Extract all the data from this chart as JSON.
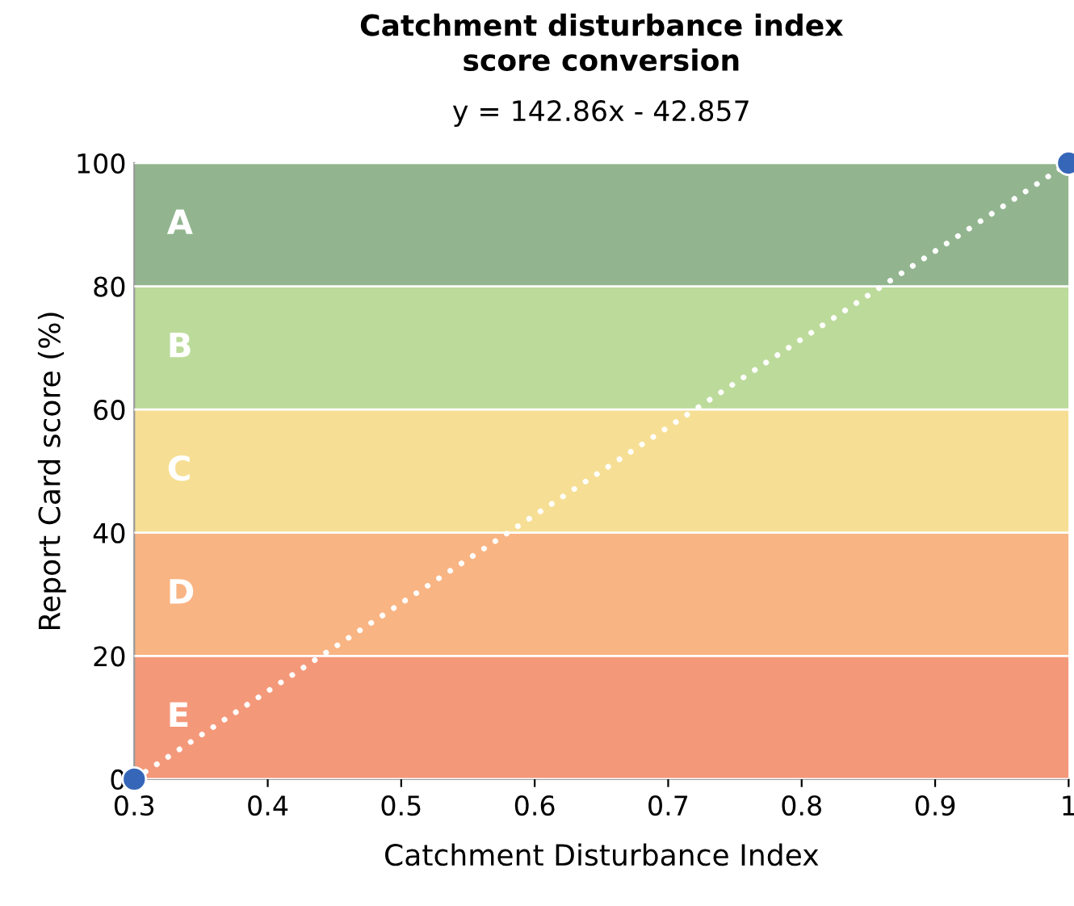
{
  "chart_data": {
    "type": "scatter",
    "title": "Catchment disturbance index\nscore conversion",
    "subtitle": "y = 142.86x - 42.857",
    "xlabel": "Catchment Disturbance Index",
    "ylabel": "Report Card score (%)",
    "xlim": [
      0.3,
      1
    ],
    "xticks": [
      0.3,
      0.4,
      0.5,
      0.6,
      0.7,
      0.8,
      0.9,
      {
        "value": 1,
        "label": "1"
      }
    ],
    "ylim": [
      0,
      100
    ],
    "yticks": [
      0,
      20,
      40,
      60,
      80,
      100
    ],
    "bands": [
      {
        "axis": "y",
        "from": 80,
        "to": 100,
        "label": "A",
        "color": "#92b58f"
      },
      {
        "axis": "y",
        "from": 60,
        "to": 80,
        "label": "B",
        "color": "#bcdb9b"
      },
      {
        "axis": "y",
        "from": 40,
        "to": 60,
        "label": "C",
        "color": "#f6df94"
      },
      {
        "axis": "y",
        "from": 20,
        "to": 40,
        "label": "D",
        "color": "#f9b483"
      },
      {
        "axis": "y",
        "from": 0,
        "to": 20,
        "label": "E",
        "color": "#f4987a"
      }
    ],
    "series": [
      {
        "type": "line",
        "values": [
          0,
          100
        ],
        "color": "#ffffff",
        "line_style": "dotted",
        "marker": "none"
      },
      {
        "values": [
          0,
          100
        ],
        "color": "#3566b8",
        "marker": "circle"
      }
    ],
    "x": [
      0.3,
      1
    ],
    "grid": "y",
    "legend": false
  }
}
